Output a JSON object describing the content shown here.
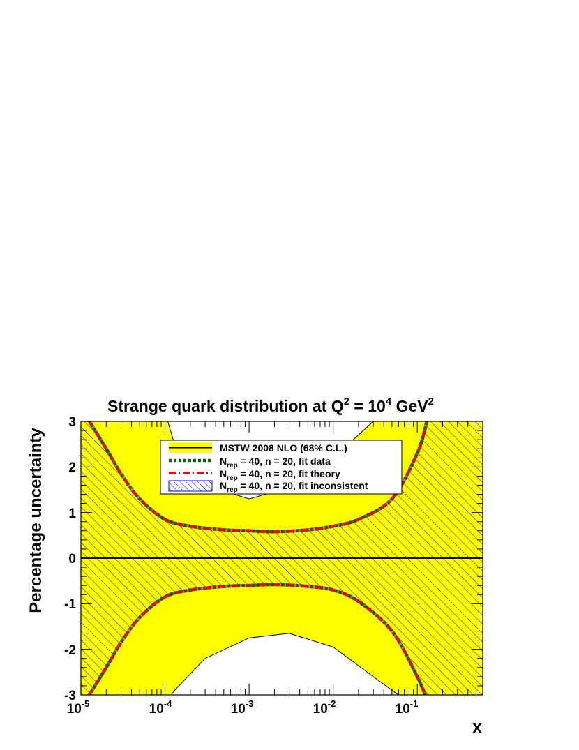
{
  "chart_data": {
    "type": "area",
    "title": "Strange quark distribution at Q² = 10⁴ GeV²",
    "title_parts": {
      "prefix": "Strange quark distribution at Q",
      "q_exp": "2",
      "mid": " = 10",
      "ten_exp": "4",
      "suffix": " GeV",
      "gev_exp": "2"
    },
    "xlabel": "x",
    "ylabel": "Percentage uncertainty",
    "xscale": "log",
    "xlim": [
      1e-05,
      0.6
    ],
    "ylim": [
      -3,
      3
    ],
    "x_ticks": [
      {
        "value": 1e-05,
        "base": "10",
        "exp": "-5"
      },
      {
        "value": 0.0001,
        "base": "10",
        "exp": "-4"
      },
      {
        "value": 0.001,
        "base": "10",
        "exp": "-3"
      },
      {
        "value": 0.01,
        "base": "10",
        "exp": "-2"
      },
      {
        "value": 0.1,
        "base": "10",
        "exp": "-1"
      }
    ],
    "y_ticks": [
      "-3",
      "-2",
      "-1",
      "0",
      "1",
      "2",
      "3"
    ],
    "legend": {
      "placement": "top-center",
      "entries": [
        {
          "label": "MSTW 2008 NLO (68% C.L.)",
          "pre": "MSTW 2008 NLO (68% C.L.)",
          "sub": "",
          "post": ""
        },
        {
          "label": "N_rep = 40, n = 20, fit data",
          "pre": "N",
          "sub": "rep",
          "post": " = 40, n = 20, fit data"
        },
        {
          "label": "N_rep = 40, n = 20, fit theory",
          "pre": "N",
          "sub": "rep",
          "post": " = 40, n = 20, fit theory"
        },
        {
          "label": "N_rep = 40, n = 20, fit inconsistent",
          "pre": "N",
          "sub": "rep",
          "post": " = 40, n = 20, fit inconsistent"
        }
      ]
    },
    "series": [
      {
        "name": "MSTW 2008 NLO (68% C.L.)",
        "style": "yellow band, black outline",
        "x": [
          1e-05,
          5e-05,
          0.0001,
          0.00013,
          0.0003,
          0.001,
          0.003,
          0.01,
          0.03,
          0.1,
          0.6
        ],
        "upper": [
          5.0,
          4.0,
          3.2,
          2.5,
          1.6,
          1.3,
          1.55,
          2.2,
          3.0,
          4.0,
          5.0
        ],
        "lower": [
          -5.0,
          -4.0,
          -3.2,
          -2.9,
          -2.2,
          -1.75,
          -1.65,
          -1.95,
          -2.6,
          -3.3,
          -5.0
        ]
      },
      {
        "name": "N_rep = 40, n = 20, fit data",
        "style": "green dotted",
        "x": [
          1e-05,
          2e-05,
          3e-05,
          5e-05,
          0.0001,
          0.0002,
          0.0005,
          0.001,
          0.002,
          0.005,
          0.01,
          0.02,
          0.05,
          0.1,
          0.13
        ],
        "upper": [
          3.3,
          2.4,
          1.85,
          1.3,
          0.85,
          0.7,
          0.62,
          0.6,
          0.58,
          0.62,
          0.7,
          0.85,
          1.3,
          2.3,
          3.0
        ],
        "lower": [
          -3.3,
          -2.4,
          -1.85,
          -1.3,
          -0.85,
          -0.7,
          -0.62,
          -0.6,
          -0.58,
          -0.62,
          -0.7,
          -0.95,
          -1.6,
          -2.6,
          -3.1
        ]
      },
      {
        "name": "N_rep = 40, n = 20, fit theory",
        "style": "red dash-dot",
        "x": [
          1e-05,
          2e-05,
          3e-05,
          5e-05,
          0.0001,
          0.0002,
          0.0005,
          0.001,
          0.002,
          0.005,
          0.01,
          0.02,
          0.05,
          0.1,
          0.13
        ],
        "upper": [
          3.3,
          2.4,
          1.85,
          1.3,
          0.85,
          0.7,
          0.62,
          0.6,
          0.58,
          0.62,
          0.7,
          0.85,
          1.3,
          2.3,
          3.0
        ],
        "lower": [
          -3.3,
          -2.4,
          -1.85,
          -1.3,
          -0.85,
          -0.7,
          -0.62,
          -0.6,
          -0.58,
          -0.62,
          -0.7,
          -0.95,
          -1.6,
          -2.6,
          -3.1
        ]
      },
      {
        "name": "N_rep = 40, n = 20, fit inconsistent",
        "style": "blue hatched band",
        "x": [
          1e-05,
          2e-05,
          3e-05,
          5e-05,
          0.0001,
          0.0002,
          0.0005,
          0.001,
          0.002,
          0.005,
          0.01,
          0.02,
          0.05,
          0.1,
          0.13
        ],
        "upper": [
          3.3,
          2.4,
          1.85,
          1.3,
          0.85,
          0.7,
          0.62,
          0.6,
          0.58,
          0.62,
          0.7,
          0.85,
          1.3,
          2.3,
          3.0
        ],
        "lower": [
          -3.3,
          -2.4,
          -1.85,
          -1.3,
          -0.85,
          -0.7,
          -0.62,
          -0.6,
          -0.58,
          -0.62,
          -0.7,
          -0.95,
          -1.6,
          -2.6,
          -3.1
        ]
      }
    ],
    "reference_line": {
      "y": 0
    },
    "colors": {
      "mstw_band": "#ffff00",
      "fit_data": "#006600",
      "fit_theory": "#ff0000",
      "fit_inconsistent": "#0000ff",
      "hatch_lines": "#333333"
    }
  }
}
